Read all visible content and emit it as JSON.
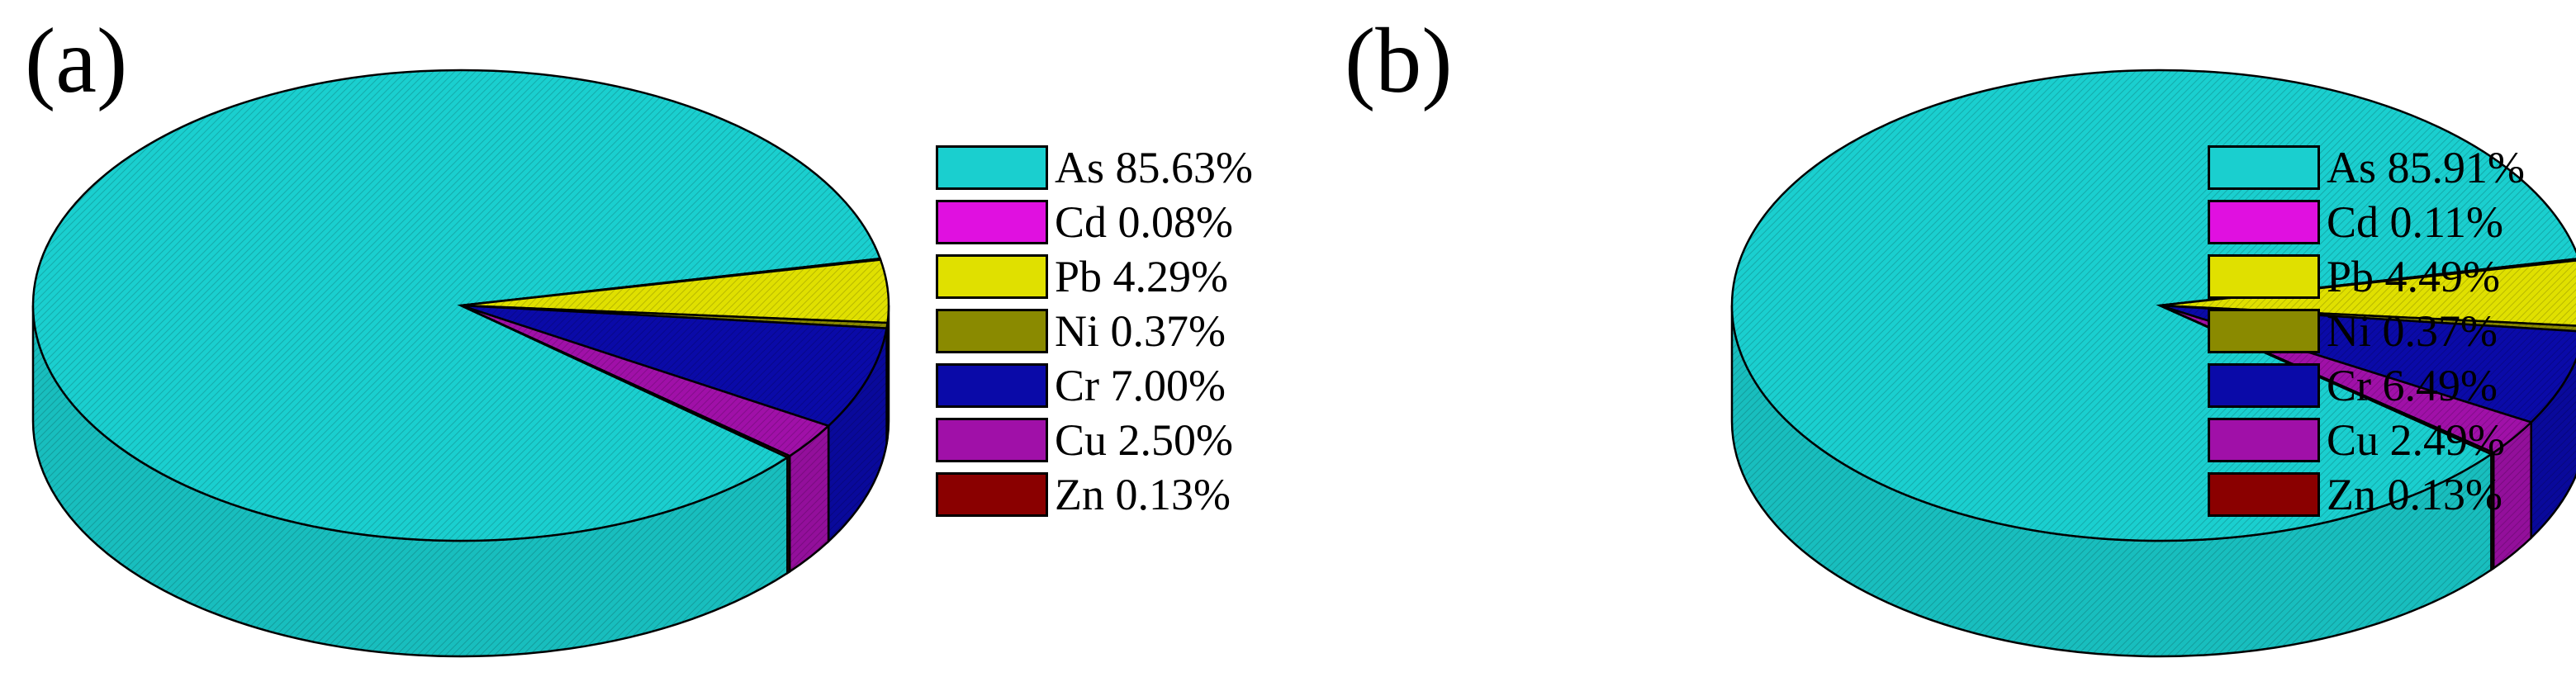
{
  "chart_data": [
    {
      "type": "pie",
      "panel_label": "(a)",
      "style": "3d-pie",
      "legend_position": "right",
      "slices": [
        {
          "label": "As",
          "value": 85.63,
          "percent_text": "85.63%",
          "color": "#1ACFCF"
        },
        {
          "label": "Cd",
          "value": 0.08,
          "percent_text": "0.08%",
          "color": "#E010E0"
        },
        {
          "label": "Pb",
          "value": 4.29,
          "percent_text": "4.29%",
          "color": "#E0E000"
        },
        {
          "label": "Ni",
          "value": 0.37,
          "percent_text": "0.37%",
          "color": "#8A8A00"
        },
        {
          "label": "Cr",
          "value": 7.0,
          "percent_text": "7.00%",
          "color": "#0A0AA8"
        },
        {
          "label": "Cu",
          "value": 2.5,
          "percent_text": "2.50%",
          "color": "#A010A8"
        },
        {
          "label": "Zn",
          "value": 0.13,
          "percent_text": "0.13%",
          "color": "#8A0000"
        }
      ]
    },
    {
      "type": "pie",
      "panel_label": "(b)",
      "style": "3d-pie",
      "legend_position": "right",
      "slices": [
        {
          "label": "As",
          "value": 85.91,
          "percent_text": "85.91%",
          "color": "#1ACFCF"
        },
        {
          "label": "Cd",
          "value": 0.11,
          "percent_text": "0.11%",
          "color": "#E010E0"
        },
        {
          "label": "Pb",
          "value": 4.49,
          "percent_text": "4.49%",
          "color": "#E0E000"
        },
        {
          "label": "Ni",
          "value": 0.37,
          "percent_text": "0.37%",
          "color": "#8A8A00"
        },
        {
          "label": "Cr",
          "value": 6.49,
          "percent_text": "6.49%",
          "color": "#0A0AA8"
        },
        {
          "label": "Cu",
          "value": 2.49,
          "percent_text": "2.49%",
          "color": "#A010A8"
        },
        {
          "label": "Zn",
          "value": 0.13,
          "percent_text": "0.13%",
          "color": "#8A0000"
        }
      ]
    }
  ]
}
